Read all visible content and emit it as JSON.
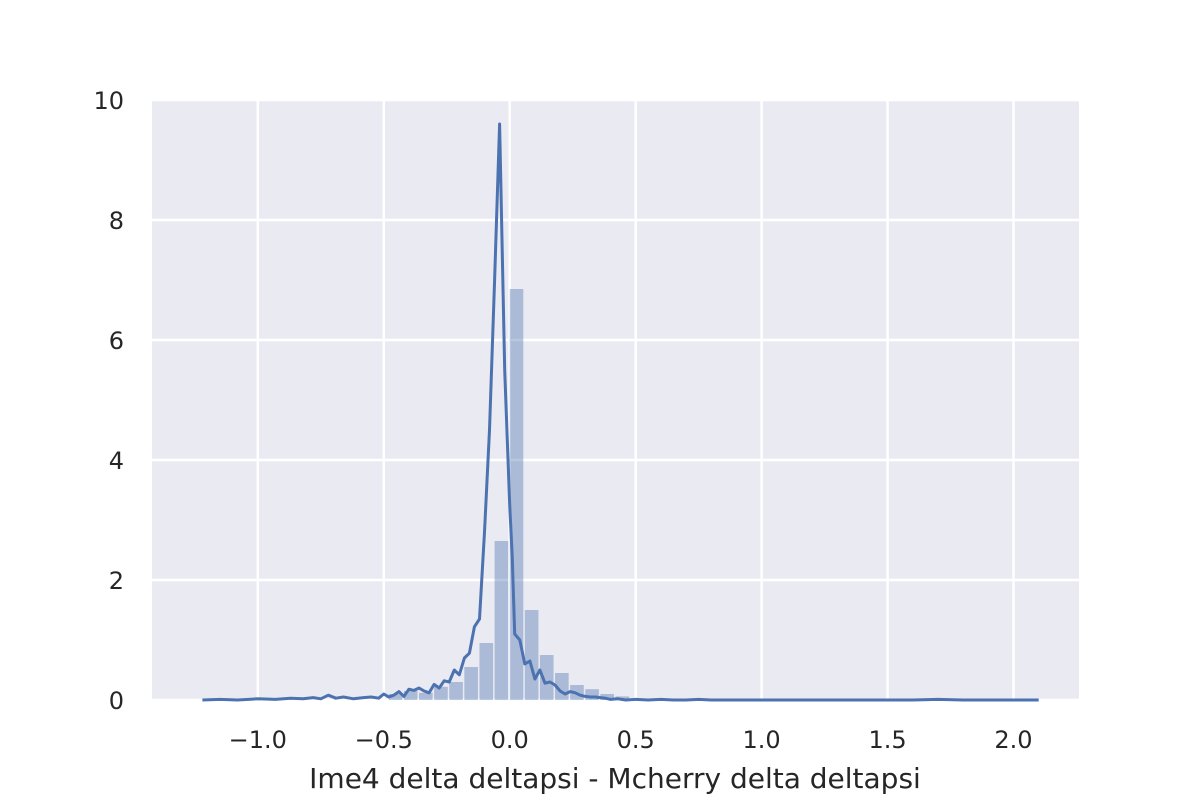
{
  "chart_data": {
    "type": "histogram-kde",
    "style": "seaborn-darkgrid",
    "xlabel": "Ime4 delta deltapsi - Mcherry delta deltapsi",
    "ylabel": "",
    "title": "",
    "xlim": [
      -1.42,
      2.26
    ],
    "ylim": [
      0,
      10
    ],
    "grid": true,
    "x_ticks": [
      -1.0,
      -0.5,
      0.0,
      0.5,
      1.0,
      1.5,
      2.0
    ],
    "x_tick_labels": [
      "−1.0",
      "−0.5",
      "0.0",
      "0.5",
      "1.0",
      "1.5",
      "2.0"
    ],
    "y_ticks": [
      0,
      2,
      4,
      6,
      8,
      10
    ],
    "y_tick_labels": [
      "0",
      "2",
      "4",
      "6",
      "8",
      "10"
    ],
    "colors": {
      "background": "#EAEAF2",
      "grid": "#FFFFFF",
      "line": "#4C72B0",
      "bar": "#4C72B0"
    },
    "bars": [
      {
        "x0": -0.48,
        "x1": -0.42,
        "height": 0.1
      },
      {
        "x0": -0.42,
        "x1": -0.36,
        "height": 0.15
      },
      {
        "x0": -0.36,
        "x1": -0.3,
        "height": 0.12
      },
      {
        "x0": -0.3,
        "x1": -0.24,
        "height": 0.22
      },
      {
        "x0": -0.24,
        "x1": -0.18,
        "height": 0.3
      },
      {
        "x0": -0.18,
        "x1": -0.12,
        "height": 0.55
      },
      {
        "x0": -0.12,
        "x1": -0.06,
        "height": 0.95
      },
      {
        "x0": -0.06,
        "x1": 0.0,
        "height": 2.65
      },
      {
        "x0": 0.0,
        "x1": 0.06,
        "height": 6.85
      },
      {
        "x0": 0.06,
        "x1": 0.12,
        "height": 1.5
      },
      {
        "x0": 0.12,
        "x1": 0.18,
        "height": 0.75
      },
      {
        "x0": 0.18,
        "x1": 0.24,
        "height": 0.45
      },
      {
        "x0": 0.24,
        "x1": 0.3,
        "height": 0.25
      },
      {
        "x0": 0.3,
        "x1": 0.36,
        "height": 0.18
      },
      {
        "x0": 0.36,
        "x1": 0.42,
        "height": 0.1
      },
      {
        "x0": 0.42,
        "x1": 0.48,
        "height": 0.06
      }
    ],
    "kde_x": [
      -1.22,
      -1.15,
      -1.08,
      -1.0,
      -0.93,
      -0.87,
      -0.82,
      -0.78,
      -0.75,
      -0.72,
      -0.69,
      -0.66,
      -0.62,
      -0.58,
      -0.55,
      -0.52,
      -0.5,
      -0.48,
      -0.46,
      -0.44,
      -0.42,
      -0.4,
      -0.38,
      -0.36,
      -0.34,
      -0.32,
      -0.3,
      -0.28,
      -0.26,
      -0.24,
      -0.22,
      -0.2,
      -0.18,
      -0.16,
      -0.14,
      -0.12,
      -0.1,
      -0.08,
      -0.06,
      -0.04,
      -0.02,
      0.0,
      0.01,
      0.02,
      0.04,
      0.06,
      0.08,
      0.1,
      0.12,
      0.14,
      0.16,
      0.18,
      0.2,
      0.22,
      0.24,
      0.26,
      0.28,
      0.3,
      0.32,
      0.34,
      0.36,
      0.38,
      0.4,
      0.43,
      0.46,
      0.5,
      0.55,
      0.6,
      0.65,
      0.7,
      0.75,
      0.8,
      0.9,
      1.0,
      1.2,
      1.4,
      1.6,
      1.7,
      1.8,
      2.0,
      2.1
    ],
    "kde_y": [
      0.0,
      0.01,
      0.0,
      0.02,
      0.01,
      0.03,
      0.02,
      0.04,
      0.02,
      0.08,
      0.03,
      0.05,
      0.02,
      0.04,
      0.05,
      0.03,
      0.1,
      0.05,
      0.08,
      0.14,
      0.06,
      0.18,
      0.16,
      0.2,
      0.15,
      0.12,
      0.26,
      0.2,
      0.32,
      0.3,
      0.5,
      0.42,
      0.7,
      0.78,
      1.22,
      1.35,
      2.8,
      4.5,
      7.0,
      9.6,
      5.5,
      3.25,
      2.4,
      1.1,
      1.0,
      0.6,
      0.65,
      0.35,
      0.5,
      0.28,
      0.3,
      0.25,
      0.15,
      0.1,
      0.14,
      0.12,
      0.08,
      0.06,
      0.05,
      0.05,
      0.04,
      0.03,
      0.01,
      0.02,
      0.0,
      0.01,
      0.0,
      0.01,
      0.0,
      0.0,
      0.01,
      0.0,
      0.0,
      0.0,
      0.0,
      0.0,
      0.0,
      0.01,
      0.0,
      0.0,
      0.0
    ]
  }
}
